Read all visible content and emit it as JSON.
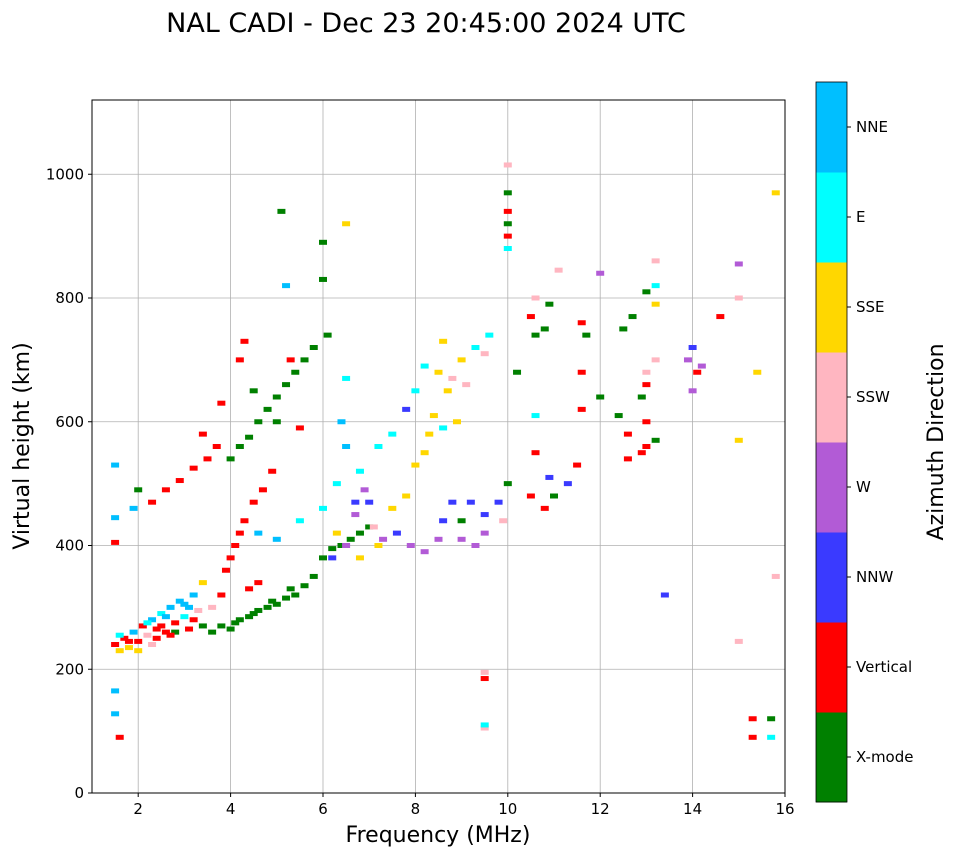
{
  "chart_data": {
    "type": "scatter",
    "title": "NAL CADI - Dec 23 20:45:00 2024 UTC",
    "xlabel": "Frequency (MHz)",
    "ylabel": "Virtual height (km)",
    "xlim": [
      1,
      16
    ],
    "ylim": [
      0,
      1120
    ],
    "xticks": [
      2,
      4,
      6,
      8,
      10,
      12,
      14,
      16
    ],
    "yticks": [
      0,
      200,
      400,
      600,
      800,
      1000
    ],
    "grid": true,
    "colorbar": {
      "label": "Azimuth Direction",
      "categories": [
        {
          "name": "X-mode",
          "color": "#008000"
        },
        {
          "name": "Vertical",
          "color": "#ff0000"
        },
        {
          "name": "NNW",
          "color": "#3a3aff"
        },
        {
          "name": "W",
          "color": "#b25bd6"
        },
        {
          "name": "SSW",
          "color": "#ffb6c1"
        },
        {
          "name": "SSE",
          "color": "#ffd700"
        },
        {
          "name": "E",
          "color": "#00ffff"
        },
        {
          "name": "NNE",
          "color": "#00bfff"
        }
      ]
    },
    "point_fields": [
      "frequency_mhz",
      "height_km",
      "category_index"
    ],
    "points": [
      [
        1.5,
        240,
        1
      ],
      [
        1.6,
        230,
        5
      ],
      [
        1.7,
        250,
        1
      ],
      [
        1.8,
        235,
        5
      ],
      [
        1.9,
        260,
        7
      ],
      [
        2.0,
        245,
        1
      ],
      [
        2.1,
        270,
        1
      ],
      [
        2.2,
        255,
        4
      ],
      [
        2.3,
        280,
        7
      ],
      [
        2.4,
        265,
        1
      ],
      [
        2.5,
        290,
        6
      ],
      [
        2.6,
        260,
        1
      ],
      [
        2.7,
        300,
        7
      ],
      [
        2.8,
        275,
        1
      ],
      [
        2.9,
        310,
        7
      ],
      [
        3.0,
        285,
        6
      ],
      [
        3.1,
        265,
        1
      ],
      [
        3.2,
        320,
        7
      ],
      [
        3.3,
        295,
        4
      ],
      [
        3.4,
        270,
        0
      ],
      [
        1.6,
        255,
        6
      ],
      [
        1.8,
        245,
        1
      ],
      [
        2.0,
        230,
        5
      ],
      [
        2.2,
        275,
        6
      ],
      [
        2.4,
        250,
        1
      ],
      [
        2.6,
        285,
        7
      ],
      [
        2.8,
        260,
        0
      ],
      [
        3.0,
        305,
        7
      ],
      [
        3.2,
        280,
        1
      ],
      [
        3.4,
        340,
        5
      ],
      [
        3.6,
        300,
        4
      ],
      [
        3.8,
        320,
        1
      ],
      [
        2.3,
        240,
        4
      ],
      [
        2.7,
        255,
        1
      ],
      [
        3.1,
        300,
        7
      ],
      [
        2.5,
        270,
        1
      ],
      [
        3.6,
        260,
        0
      ],
      [
        3.8,
        270,
        0
      ],
      [
        4.0,
        265,
        0
      ],
      [
        4.2,
        280,
        0
      ],
      [
        4.4,
        285,
        0
      ],
      [
        4.6,
        295,
        0
      ],
      [
        4.8,
        300,
        0
      ],
      [
        5.0,
        305,
        0
      ],
      [
        5.2,
        315,
        0
      ],
      [
        5.4,
        320,
        0
      ],
      [
        5.6,
        335,
        0
      ],
      [
        5.8,
        350,
        0
      ],
      [
        6.0,
        380,
        0
      ],
      [
        6.2,
        395,
        0
      ],
      [
        6.4,
        400,
        0
      ],
      [
        6.6,
        410,
        0
      ],
      [
        6.8,
        420,
        0
      ],
      [
        7.0,
        430,
        0
      ],
      [
        4.1,
        275,
        0
      ],
      [
        4.5,
        290,
        0
      ],
      [
        4.9,
        310,
        0
      ],
      [
        5.3,
        330,
        0
      ],
      [
        4.0,
        540,
        0
      ],
      [
        4.2,
        560,
        0
      ],
      [
        4.4,
        575,
        0
      ],
      [
        4.6,
        600,
        0
      ],
      [
        4.8,
        620,
        0
      ],
      [
        5.0,
        640,
        0
      ],
      [
        5.2,
        660,
        0
      ],
      [
        5.4,
        680,
        0
      ],
      [
        5.6,
        700,
        0
      ],
      [
        4.5,
        650,
        0
      ],
      [
        5.0,
        600,
        0
      ],
      [
        6.0,
        830,
        0
      ],
      [
        6.0,
        890,
        0
      ],
      [
        5.1,
        940,
        0
      ],
      [
        5.8,
        720,
        0
      ],
      [
        6.1,
        740,
        0
      ],
      [
        3.9,
        360,
        1
      ],
      [
        4.0,
        380,
        1
      ],
      [
        4.1,
        400,
        1
      ],
      [
        4.2,
        420,
        1
      ],
      [
        4.3,
        440,
        1
      ],
      [
        4.5,
        470,
        1
      ],
      [
        4.7,
        490,
        1
      ],
      [
        4.9,
        520,
        1
      ],
      [
        3.5,
        540,
        1
      ],
      [
        3.7,
        560,
        1
      ],
      [
        3.8,
        630,
        1
      ],
      [
        4.2,
        700,
        1
      ],
      [
        4.3,
        730,
        1
      ],
      [
        2.3,
        470,
        1
      ],
      [
        2.6,
        490,
        1
      ],
      [
        2.9,
        505,
        1
      ],
      [
        3.2,
        525,
        1
      ],
      [
        3.4,
        580,
        1
      ],
      [
        4.4,
        330,
        1
      ],
      [
        4.6,
        340,
        1
      ],
      [
        1.5,
        405,
        1
      ],
      [
        1.6,
        90,
        1
      ],
      [
        5.5,
        590,
        1
      ],
      [
        5.3,
        700,
        1
      ],
      [
        9.5,
        185,
        1
      ],
      [
        9.5,
        195,
        4
      ],
      [
        9.5,
        105,
        4
      ],
      [
        9.5,
        110,
        6
      ],
      [
        1.5,
        165,
        7
      ],
      [
        1.5,
        128,
        7
      ],
      [
        1.5,
        530,
        7
      ],
      [
        1.5,
        445,
        7
      ],
      [
        1.9,
        460,
        7
      ],
      [
        2.0,
        490,
        0
      ],
      [
        4.6,
        420,
        7
      ],
      [
        5.0,
        410,
        7
      ],
      [
        5.5,
        440,
        6
      ],
      [
        6.0,
        460,
        6
      ],
      [
        6.3,
        500,
        6
      ],
      [
        6.5,
        560,
        7
      ],
      [
        6.5,
        670,
        6
      ],
      [
        6.8,
        520,
        6
      ],
      [
        7.2,
        560,
        6
      ],
      [
        7.5,
        580,
        6
      ],
      [
        7.8,
        620,
        2
      ],
      [
        8.0,
        650,
        6
      ],
      [
        6.5,
        920,
        5
      ],
      [
        5.2,
        820,
        7
      ],
      [
        6.4,
        600,
        7
      ],
      [
        6.2,
        380,
        2
      ],
      [
        6.5,
        400,
        3
      ],
      [
        6.7,
        450,
        3
      ],
      [
        6.9,
        490,
        3
      ],
      [
        7.0,
        470,
        2
      ],
      [
        7.3,
        410,
        3
      ],
      [
        7.6,
        420,
        2
      ],
      [
        7.9,
        400,
        3
      ],
      [
        8.2,
        390,
        3
      ],
      [
        8.5,
        410,
        3
      ],
      [
        8.6,
        440,
        2
      ],
      [
        8.8,
        470,
        2
      ],
      [
        9.0,
        410,
        3
      ],
      [
        9.0,
        440,
        0
      ],
      [
        9.2,
        470,
        2
      ],
      [
        9.5,
        450,
        2
      ],
      [
        9.5,
        420,
        3
      ],
      [
        9.3,
        400,
        3
      ],
      [
        9.8,
        470,
        2
      ],
      [
        10.0,
        500,
        0
      ],
      [
        9.9,
        440,
        4
      ],
      [
        6.7,
        470,
        2
      ],
      [
        7.1,
        430,
        4
      ],
      [
        6.3,
        420,
        5
      ],
      [
        6.8,
        380,
        5
      ],
      [
        7.2,
        400,
        5
      ],
      [
        7.5,
        460,
        5
      ],
      [
        7.8,
        480,
        5
      ],
      [
        8.0,
        530,
        5
      ],
      [
        8.2,
        550,
        5
      ],
      [
        8.4,
        610,
        5
      ],
      [
        8.5,
        680,
        5
      ],
      [
        8.7,
        650,
        5
      ],
      [
        8.9,
        600,
        5
      ],
      [
        9.0,
        700,
        5
      ],
      [
        8.6,
        730,
        5
      ],
      [
        8.3,
        580,
        5
      ],
      [
        8.6,
        590,
        6
      ],
      [
        9.1,
        660,
        4
      ],
      [
        8.8,
        670,
        4
      ],
      [
        9.5,
        710,
        4
      ],
      [
        9.6,
        740,
        6
      ],
      [
        9.3,
        720,
        6
      ],
      [
        8.2,
        690,
        6
      ],
      [
        10.0,
        880,
        6
      ],
      [
        10.0,
        900,
        1
      ],
      [
        10.0,
        920,
        0
      ],
      [
        10.0,
        940,
        1
      ],
      [
        10.0,
        970,
        0
      ],
      [
        10.0,
        1015,
        4
      ],
      [
        10.6,
        740,
        0
      ],
      [
        10.8,
        750,
        0
      ],
      [
        10.9,
        790,
        0
      ],
      [
        10.6,
        800,
        4
      ],
      [
        10.5,
        770,
        1
      ],
      [
        10.6,
        550,
        1
      ],
      [
        10.5,
        480,
        1
      ],
      [
        10.8,
        460,
        1
      ],
      [
        10.9,
        510,
        2
      ],
      [
        11.0,
        480,
        0
      ],
      [
        11.3,
        500,
        2
      ],
      [
        11.5,
        530,
        1
      ],
      [
        11.6,
        620,
        1
      ],
      [
        11.6,
        680,
        1
      ],
      [
        11.7,
        740,
        0
      ],
      [
        11.6,
        760,
        1
      ],
      [
        12.0,
        840,
        3
      ],
      [
        12.4,
        610,
        0
      ],
      [
        12.5,
        750,
        0
      ],
      [
        12.7,
        770,
        0
      ],
      [
        12.6,
        580,
        1
      ],
      [
        12.6,
        540,
        1
      ],
      [
        12.9,
        550,
        1
      ],
      [
        13.0,
        560,
        1
      ],
      [
        13.2,
        570,
        0
      ],
      [
        13.0,
        600,
        1
      ],
      [
        12.9,
        640,
        0
      ],
      [
        13.0,
        660,
        1
      ],
      [
        13.2,
        700,
        4
      ],
      [
        13.0,
        810,
        0
      ],
      [
        13.2,
        790,
        5
      ],
      [
        13.2,
        820,
        6
      ],
      [
        13.2,
        860,
        4
      ],
      [
        13.0,
        680,
        4
      ],
      [
        13.4,
        320,
        2
      ],
      [
        13.9,
        700,
        3
      ],
      [
        14.0,
        720,
        2
      ],
      [
        14.2,
        690,
        3
      ],
      [
        14.0,
        650,
        3
      ],
      [
        14.1,
        680,
        1
      ],
      [
        14.6,
        770,
        1
      ],
      [
        15.0,
        855,
        3
      ],
      [
        15.0,
        800,
        4
      ],
      [
        15.0,
        570,
        5
      ],
      [
        15.0,
        245,
        4
      ],
      [
        15.3,
        120,
        1
      ],
      [
        15.3,
        90,
        1
      ],
      [
        15.7,
        90,
        6
      ],
      [
        15.7,
        120,
        0
      ],
      [
        15.4,
        680,
        5
      ],
      [
        15.8,
        970,
        5
      ],
      [
        15.8,
        350,
        4
      ],
      [
        10.2,
        680,
        0
      ],
      [
        10.6,
        610,
        6
      ],
      [
        12.0,
        640,
        0
      ],
      [
        11.1,
        845,
        4
      ]
    ]
  }
}
